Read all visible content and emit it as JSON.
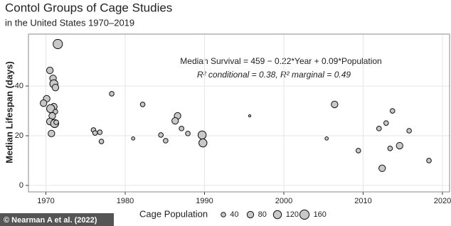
{
  "chart_data": {
    "type": "bubble",
    "title": "Contol Groups of Cage Studies",
    "subtitle": "in the United States 1970–2019",
    "ylabel": "Median Lifespan (days)",
    "annotations": [
      "Median Survival = 459 − 0.22*Year + 0.09*Population",
      "R² conditional = 0.38,  R² marginal = 0.49"
    ],
    "credit": "© Nearman A et al. (2022)",
    "legend_title": "Cage Population",
    "legend_sizes": [
      40,
      80,
      120,
      160
    ],
    "xlim": [
      1967.8,
      2020.9
    ],
    "xticks": [
      1970,
      1980,
      1990,
      2000,
      2010,
      2020
    ],
    "ylim": [
      -2.6,
      60.9
    ],
    "yticks": [
      0,
      20,
      40
    ],
    "grid": true,
    "color": "#c8c8c8",
    "series": [
      {
        "name": "Cage Population",
        "x": [
          1971.5,
          1970.5,
          1970.9,
          1971,
          1971.2,
          1970.1,
          1969.7,
          1971,
          1970.6,
          1971.2,
          1970.8,
          1970.5,
          1971.1,
          1971.3,
          1970.7,
          1978.3,
          1982.2,
          1976,
          1976.2,
          1976.8,
          1977,
          1981,
          1986.6,
          1986.3,
          1987.1,
          1987.9,
          1984.5,
          1985.1,
          1989.7,
          1989.8,
          1995.7,
          2006.4,
          2005.4,
          2013.7,
          2012,
          2012.9,
          2013.4,
          2014.6,
          2015.8,
          2009.4,
          2012.4,
          2018.3
        ],
        "values": [
          56.9,
          46.3,
          43.1,
          40.9,
          39.4,
          34.9,
          33.1,
          31.7,
          30.9,
          29.7,
          28,
          25.7,
          24.9,
          25.4,
          20.9,
          36.9,
          32.6,
          22.3,
          21.1,
          21.4,
          17.7,
          18.9,
          28,
          26,
          22.9,
          20.9,
          20.3,
          18,
          20.3,
          17.1,
          28,
          32.6,
          18.9,
          30,
          22.9,
          25.1,
          14.9,
          16,
          22,
          14,
          6.9,
          10
        ],
        "sizes": [
          160,
          80,
          80,
          120,
          80,
          80,
          80,
          80,
          120,
          40,
          80,
          80,
          120,
          40,
          80,
          40,
          40,
          40,
          40,
          40,
          40,
          20,
          80,
          80,
          40,
          40,
          40,
          40,
          120,
          120,
          10,
          80,
          20,
          40,
          40,
          40,
          40,
          80,
          40,
          40,
          80,
          40
        ]
      }
    ]
  }
}
